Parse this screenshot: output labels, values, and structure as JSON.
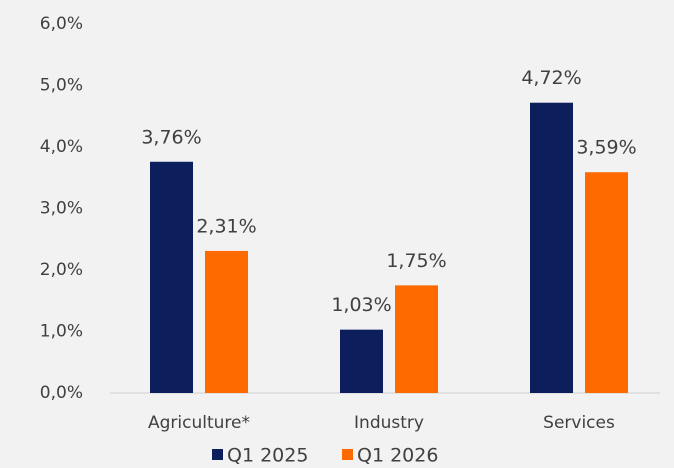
{
  "chart_data": {
    "type": "bar",
    "categories": [
      "Agriculture*",
      "Industry",
      "Services"
    ],
    "series": [
      {
        "name": "Q1 2025",
        "color": "#0c1e5b",
        "values": [
          3.76,
          1.03,
          4.72
        ],
        "value_labels": [
          "3,76%",
          "1,03%",
          "4,72%"
        ]
      },
      {
        "name": "Q1 2026",
        "color": "#ff6a00",
        "values": [
          2.31,
          1.75,
          3.59
        ],
        "value_labels": [
          "2,31%",
          "1,75%",
          "3,59%"
        ]
      }
    ],
    "ylim": [
      0,
      6
    ],
    "yticks": [
      {
        "value": 0,
        "label": "0,0%"
      },
      {
        "value": 1,
        "label": "1,0%"
      },
      {
        "value": 2,
        "label": "2,0%"
      },
      {
        "value": 3,
        "label": "3,0%"
      },
      {
        "value": 4,
        "label": "4,0%"
      },
      {
        "value": 5,
        "label": "5,0%"
      },
      {
        "value": 6,
        "label": "6,0%"
      }
    ],
    "grid": false,
    "legend": "bottom"
  }
}
